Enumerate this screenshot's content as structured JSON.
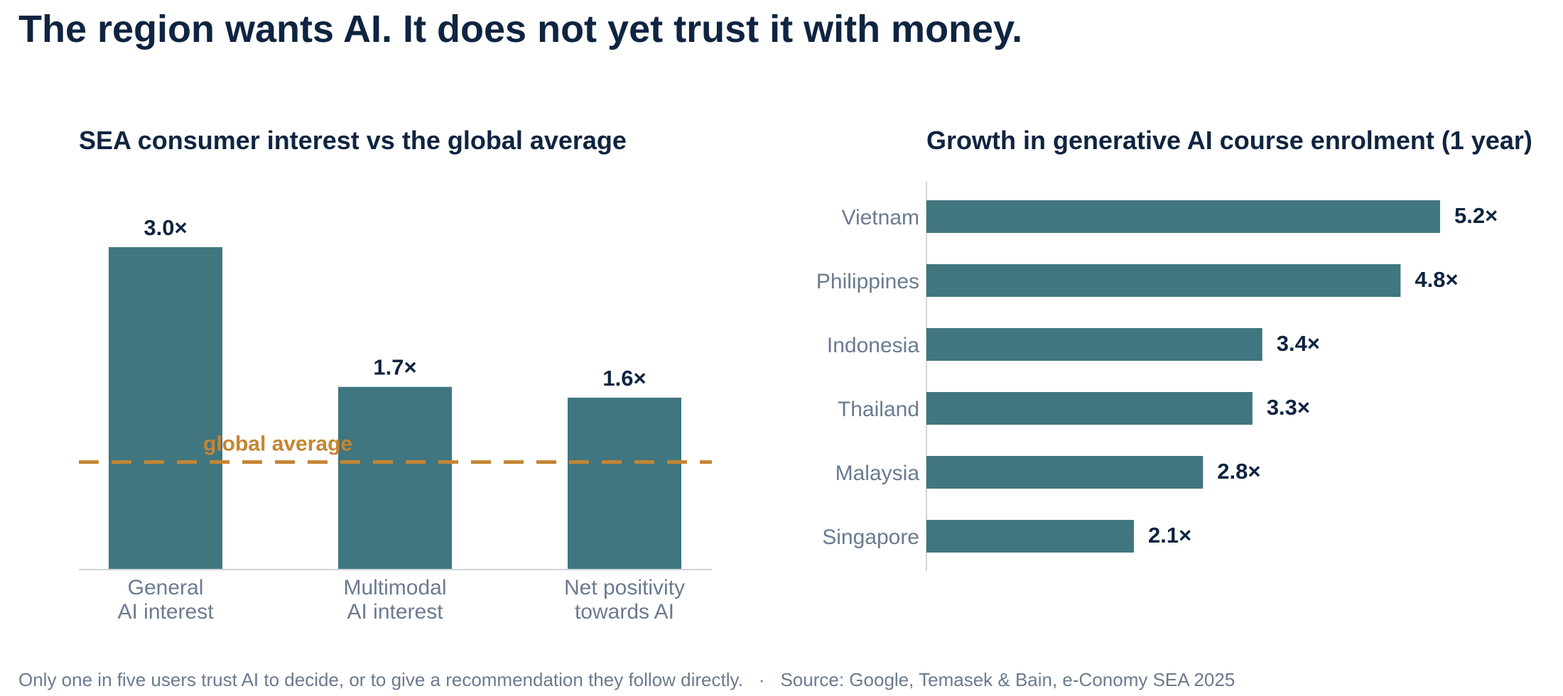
{
  "headline": "The region wants AI. It does not yet trust it with money.",
  "footer": {
    "note": "Only one in five users trust AI to decide, or to give a recommendation they follow directly.",
    "separator": "·",
    "source": "Source: Google, Temasek & Bain, e-Conomy SEA 2025"
  },
  "colors": {
    "bar": "#40767f",
    "reference": "#c58532",
    "title": "#0f2440",
    "axis_text": "#6b7a90"
  },
  "chart_data": [
    {
      "type": "bar",
      "title": "SEA consumer interest vs the global average",
      "categories": [
        [
          "General",
          "AI interest"
        ],
        [
          "Multimodal",
          "AI interest"
        ],
        [
          "Net positivity",
          "towards AI"
        ]
      ],
      "values": [
        3.0,
        1.7,
        1.6
      ],
      "value_labels": [
        "3.0×",
        "1.7×",
        "1.6×"
      ],
      "reference_line": {
        "value": 1.0,
        "label": "global average"
      },
      "ylim": [
        0,
        3.0
      ],
      "grid": false
    },
    {
      "type": "bar",
      "orientation": "horizontal",
      "title": "Growth in generative AI course enrolment (1 year)",
      "categories": [
        "Vietnam",
        "Philippines",
        "Indonesia",
        "Thailand",
        "Malaysia",
        "Singapore"
      ],
      "values": [
        5.2,
        4.8,
        3.4,
        3.3,
        2.8,
        2.1
      ],
      "value_labels": [
        "5.2×",
        "4.8×",
        "3.4×",
        "3.3×",
        "2.8×",
        "2.1×"
      ],
      "xlim": [
        0,
        5.2
      ],
      "grid": false
    }
  ]
}
